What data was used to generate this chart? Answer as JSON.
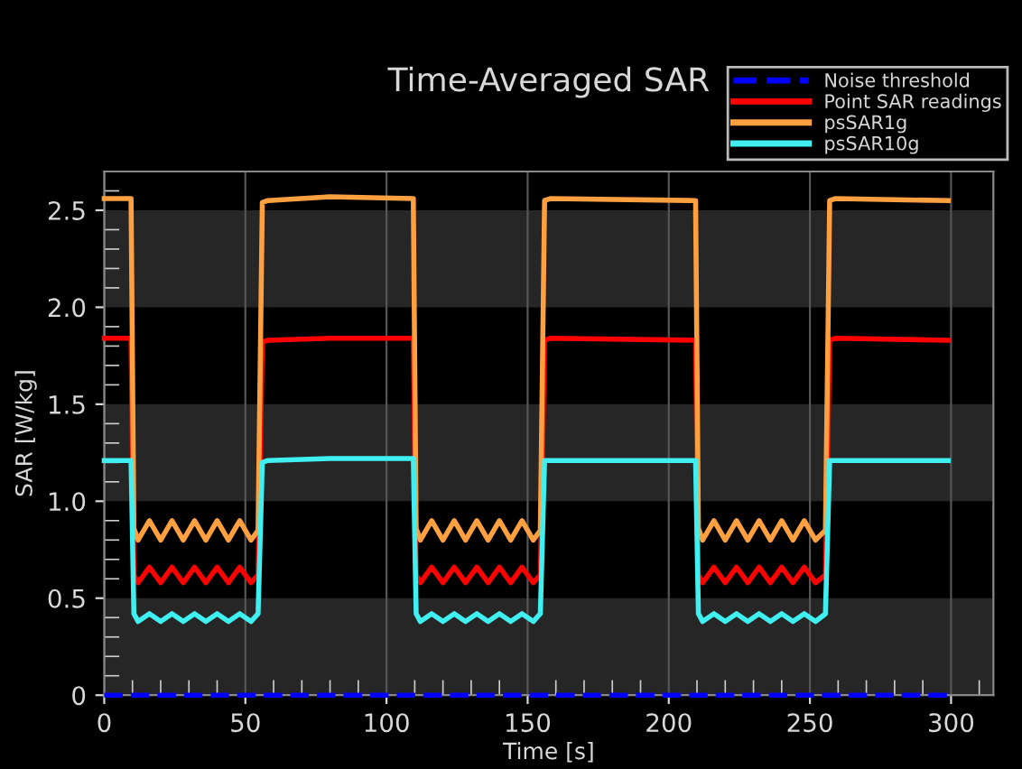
{
  "chart_data": {
    "type": "line",
    "title": "Time-Averaged SAR",
    "xlabel": "Time [s]",
    "ylabel": "SAR [W/kg]",
    "x": [
      0,
      9.5,
      10.5,
      12,
      16,
      20,
      24,
      28,
      32,
      36,
      40,
      44,
      48,
      52,
      54.5,
      56,
      58,
      80,
      109.5,
      110.5,
      112,
      116,
      120,
      124,
      128,
      132,
      136,
      140,
      144,
      148,
      152,
      154.5,
      156,
      158,
      209.5,
      210.5,
      212,
      216,
      220,
      224,
      228,
      232,
      236,
      240,
      244,
      248,
      252,
      255.5,
      257,
      259,
      299
    ],
    "series": [
      {
        "name": "Noise threshold",
        "color": "#0000ff",
        "line_style": "dashed",
        "x": [
          0,
          300
        ],
        "values": [
          0,
          0
        ]
      },
      {
        "name": "Point SAR readings",
        "color": "#ff0000",
        "values": [
          1.84,
          1.84,
          0.62,
          0.58,
          0.66,
          0.58,
          0.66,
          0.58,
          0.66,
          0.58,
          0.66,
          0.58,
          0.66,
          0.58,
          0.62,
          1.82,
          1.83,
          1.84,
          1.84,
          0.62,
          0.58,
          0.66,
          0.58,
          0.66,
          0.58,
          0.66,
          0.58,
          0.66,
          0.58,
          0.66,
          0.58,
          0.62,
          1.83,
          1.84,
          1.83,
          0.62,
          0.58,
          0.66,
          0.58,
          0.66,
          0.58,
          0.66,
          0.58,
          0.66,
          0.58,
          0.66,
          0.58,
          0.62,
          1.83,
          1.84,
          1.83
        ]
      },
      {
        "name": "psSAR1g",
        "color": "#ffa040",
        "values": [
          2.56,
          2.56,
          0.86,
          0.8,
          0.9,
          0.8,
          0.9,
          0.8,
          0.9,
          0.8,
          0.9,
          0.8,
          0.9,
          0.8,
          0.85,
          2.54,
          2.55,
          2.57,
          2.56,
          0.86,
          0.8,
          0.9,
          0.8,
          0.9,
          0.8,
          0.9,
          0.8,
          0.9,
          0.8,
          0.9,
          0.8,
          0.85,
          2.55,
          2.56,
          2.55,
          0.86,
          0.8,
          0.9,
          0.8,
          0.9,
          0.8,
          0.9,
          0.8,
          0.9,
          0.8,
          0.9,
          0.8,
          0.85,
          2.55,
          2.56,
          2.55
        ]
      },
      {
        "name": "psSAR10g",
        "color": "#40f0f0",
        "values": [
          1.21,
          1.21,
          0.42,
          0.38,
          0.42,
          0.38,
          0.42,
          0.38,
          0.42,
          0.38,
          0.42,
          0.38,
          0.42,
          0.38,
          0.42,
          1.2,
          1.21,
          1.22,
          1.22,
          0.42,
          0.38,
          0.42,
          0.38,
          0.42,
          0.38,
          0.42,
          0.38,
          0.42,
          0.38,
          0.42,
          0.38,
          0.42,
          1.21,
          1.21,
          1.21,
          0.42,
          0.38,
          0.42,
          0.38,
          0.42,
          0.38,
          0.42,
          0.38,
          0.42,
          0.38,
          0.42,
          0.38,
          0.42,
          1.21,
          1.21,
          1.21
        ]
      }
    ],
    "bands": [
      {
        "axis": "y",
        "from": 0,
        "to": 0.5,
        "color": "#262626"
      },
      {
        "axis": "y",
        "from": 1,
        "to": 1.5,
        "color": "#262626"
      },
      {
        "axis": "y",
        "from": 2,
        "to": 2.5,
        "color": "#262626"
      }
    ],
    "xlim": [
      0,
      315
    ],
    "ylim": [
      0,
      2.7
    ],
    "xticks": [
      0,
      50,
      100,
      150,
      200,
      250,
      300
    ],
    "yticks": [
      0,
      0.5,
      {
        "value": 1,
        "label": "1.0"
      },
      1.5,
      {
        "value": 2,
        "label": "2.0"
      },
      2.5
    ],
    "grid": "x",
    "legend": "top right",
    "marker": "none",
    "line_style": "solid"
  }
}
